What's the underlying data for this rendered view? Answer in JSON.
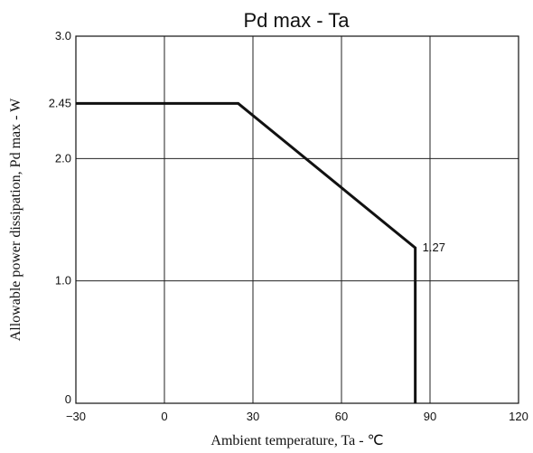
{
  "chart_data": {
    "type": "line",
    "title": "Pd max  -  Ta",
    "xlabel": "Ambient temperature, Ta - ℃",
    "ylabel": "Allowable power dissipation, Pd max - W",
    "xlim": [
      -30,
      120
    ],
    "ylim": [
      0,
      3.0
    ],
    "x_ticks": [
      -30,
      0,
      30,
      60,
      90,
      120
    ],
    "x_tick_labels": [
      "−30",
      "0",
      "30",
      "60",
      "90",
      "120"
    ],
    "y_ticks": [
      0,
      1.0,
      2.0,
      2.45,
      3.0
    ],
    "y_tick_labels": [
      "0",
      "1.0",
      "2.0",
      "2.45",
      "3.0"
    ],
    "grid_x": [
      0,
      30,
      60,
      90
    ],
    "grid_y": [
      1.0,
      2.0
    ],
    "grid": true,
    "series": [
      {
        "points": [
          {
            "x": -30,
            "y": 2.45
          },
          {
            "x": 25,
            "y": 2.45
          },
          {
            "x": 85,
            "y": 1.27
          },
          {
            "x": 85,
            "y": 0
          }
        ]
      }
    ],
    "annotations": [
      {
        "text": "1.27",
        "x": 85,
        "y": 1.27
      }
    ]
  }
}
